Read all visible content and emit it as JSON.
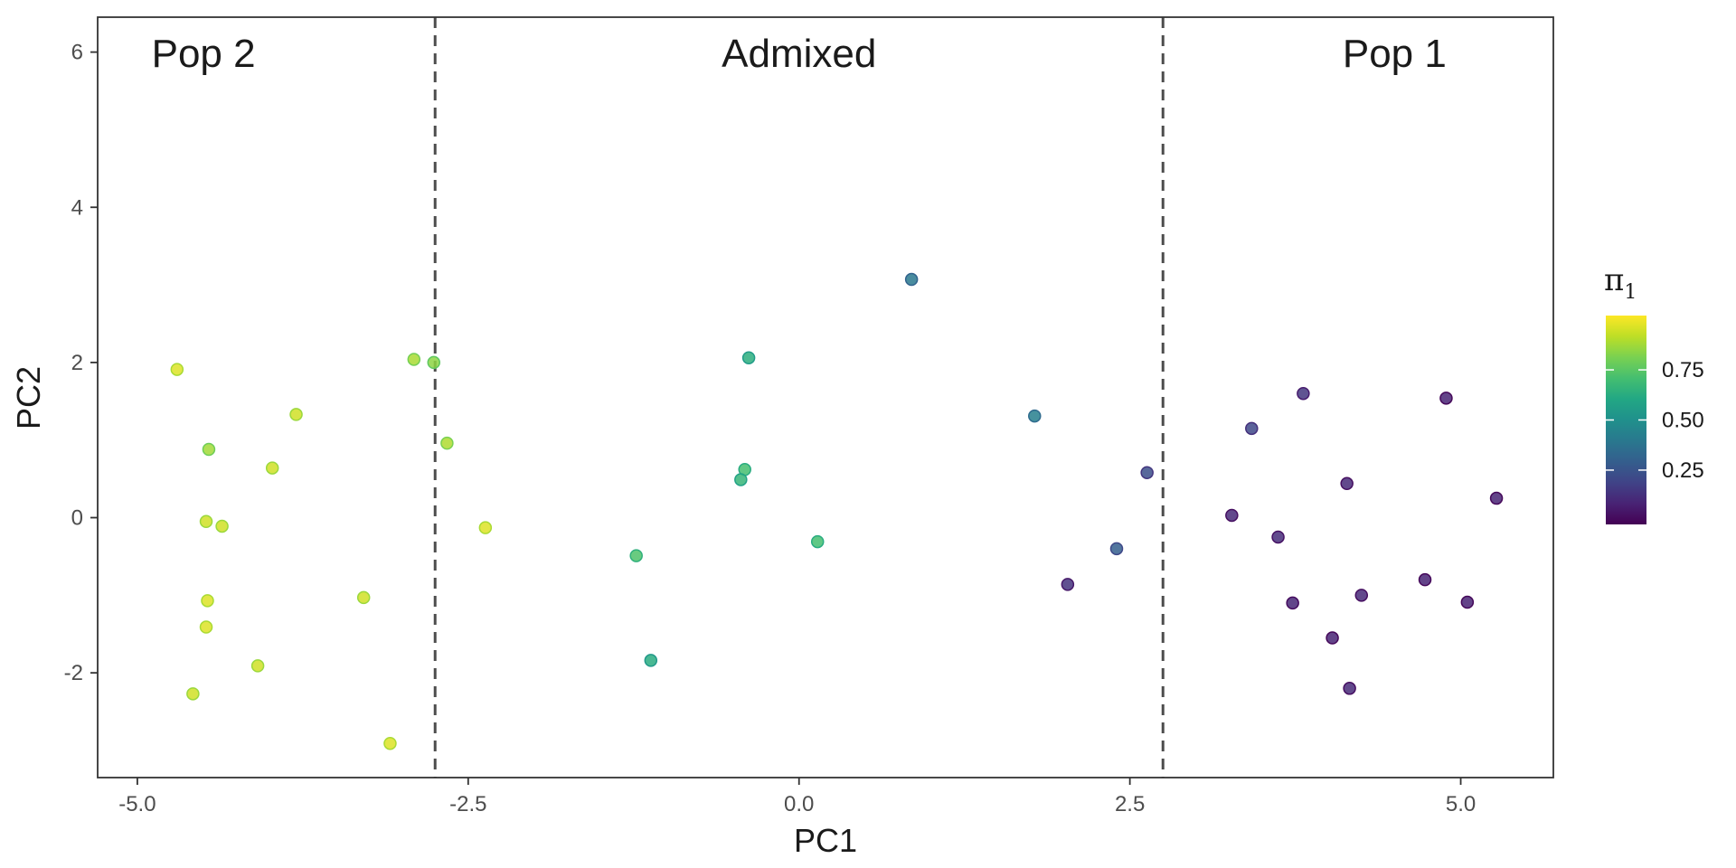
{
  "chart_data": {
    "type": "scatter",
    "xlabel": "PC1",
    "ylabel": "PC2",
    "xlim": [
      -5.3,
      5.7
    ],
    "ylim": [
      -3.35,
      6.45
    ],
    "x_ticks": [
      -5.0,
      -2.5,
      0.0,
      2.5,
      5.0
    ],
    "x_tick_labels": [
      "-5.0",
      "-2.5",
      "0.0",
      "2.5",
      "5.0"
    ],
    "y_ticks": [
      -2,
      0,
      2,
      4,
      6
    ],
    "y_tick_labels": [
      "-2",
      "0",
      "2",
      "4",
      "6"
    ],
    "grid": false,
    "color_map": "viridis",
    "vlines": [
      -2.75,
      2.75
    ],
    "regions": [
      {
        "label": "Pop 2",
        "x": -4.5
      },
      {
        "label": "Admixed",
        "x": 0.0
      },
      {
        "label": "Pop 1",
        "x": 4.5
      }
    ],
    "legend": {
      "title": "π",
      "subscript": "1",
      "position": "right",
      "range": [
        0.02,
        0.98
      ],
      "breaks": [
        0.25,
        0.5,
        0.75
      ],
      "labels": [
        "0.25",
        "0.50",
        "0.75"
      ]
    },
    "points": [
      {
        "x": -4.7,
        "y": 1.91,
        "pi": 0.95
      },
      {
        "x": -4.46,
        "y": 0.88,
        "pi": 0.86
      },
      {
        "x": -3.8,
        "y": 1.33,
        "pi": 0.93
      },
      {
        "x": -3.98,
        "y": 0.64,
        "pi": 0.93
      },
      {
        "x": -4.48,
        "y": -0.05,
        "pi": 0.93
      },
      {
        "x": -4.36,
        "y": -0.11,
        "pi": 0.93
      },
      {
        "x": -4.47,
        "y": -1.07,
        "pi": 0.95
      },
      {
        "x": -4.48,
        "y": -1.41,
        "pi": 0.95
      },
      {
        "x": -4.09,
        "y": -1.91,
        "pi": 0.93
      },
      {
        "x": -4.58,
        "y": -2.27,
        "pi": 0.93
      },
      {
        "x": -3.29,
        "y": -1.03,
        "pi": 0.93
      },
      {
        "x": -3.09,
        "y": -2.91,
        "pi": 0.95
      },
      {
        "x": -2.91,
        "y": 2.04,
        "pi": 0.87
      },
      {
        "x": -2.76,
        "y": 2.0,
        "pi": 0.83
      },
      {
        "x": -2.66,
        "y": 0.96,
        "pi": 0.88
      },
      {
        "x": -2.37,
        "y": -0.13,
        "pi": 0.95
      },
      {
        "x": -1.23,
        "y": -0.49,
        "pi": 0.72
      },
      {
        "x": -1.12,
        "y": -1.84,
        "pi": 0.62
      },
      {
        "x": -0.38,
        "y": 2.06,
        "pi": 0.63
      },
      {
        "x": -0.41,
        "y": 0.62,
        "pi": 0.7
      },
      {
        "x": -0.44,
        "y": 0.49,
        "pi": 0.66
      },
      {
        "x": 0.14,
        "y": -0.31,
        "pi": 0.7
      },
      {
        "x": 0.85,
        "y": 3.07,
        "pi": 0.4
      },
      {
        "x": 1.78,
        "y": 1.31,
        "pi": 0.43
      },
      {
        "x": 2.03,
        "y": -0.86,
        "pi": 0.15
      },
      {
        "x": 2.4,
        "y": -0.4,
        "pi": 0.3
      },
      {
        "x": 2.63,
        "y": 0.58,
        "pi": 0.24
      },
      {
        "x": 3.27,
        "y": 0.03,
        "pi": 0.12
      },
      {
        "x": 3.42,
        "y": 1.15,
        "pi": 0.22
      },
      {
        "x": 3.62,
        "y": -0.25,
        "pi": 0.13
      },
      {
        "x": 3.73,
        "y": -1.1,
        "pi": 0.11
      },
      {
        "x": 3.81,
        "y": 1.6,
        "pi": 0.16
      },
      {
        "x": 4.03,
        "y": -1.55,
        "pi": 0.1
      },
      {
        "x": 4.14,
        "y": 0.44,
        "pi": 0.12
      },
      {
        "x": 4.16,
        "y": -2.2,
        "pi": 0.12
      },
      {
        "x": 4.25,
        "y": -1.0,
        "pi": 0.12
      },
      {
        "x": 4.73,
        "y": -0.8,
        "pi": 0.1
      },
      {
        "x": 4.89,
        "y": 1.54,
        "pi": 0.1
      },
      {
        "x": 5.05,
        "y": -1.09,
        "pi": 0.1
      },
      {
        "x": 5.27,
        "y": 0.25,
        "pi": 0.1
      }
    ]
  }
}
